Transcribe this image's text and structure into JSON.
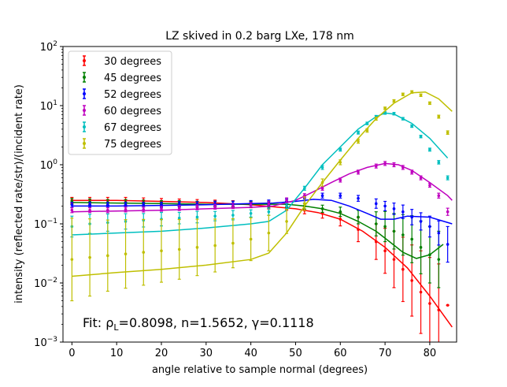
{
  "chart_data": {
    "type": "scatter",
    "title": "LZ skived in 0.2 barg LXe, 178 nm",
    "xlabel": "angle relative to sample normal (degrees)",
    "ylabel": "intensity (reflected rate/str)/(incident rate)",
    "xlim": [
      -2,
      86
    ],
    "ylim": [
      0.001,
      100
    ],
    "yscale": "log",
    "grid": false,
    "legend_position": "top-left",
    "annotation": "Fit: ρL=0.8098, n=1.5652, γ=0.1118",
    "annotation_parts": {
      "prefix": "Fit: ρ",
      "sub": "L",
      "rest": "=0.8098, n=1.5652, γ=0.1118"
    },
    "x_ticks": [
      0,
      10,
      20,
      30,
      40,
      50,
      60,
      70,
      80
    ],
    "x_tick_labels": [
      "0",
      "10",
      "20",
      "30",
      "40",
      "50",
      "60",
      "70",
      "80"
    ],
    "y_ticks": [
      0.001,
      0.01,
      0.1,
      1,
      10,
      100
    ],
    "y_tick_labels": [
      {
        "base": "10",
        "exp": "−3"
      },
      {
        "base": "10",
        "exp": "−2"
      },
      {
        "base": "10",
        "exp": "−1"
      },
      {
        "base": "10",
        "exp": "0"
      },
      {
        "base": "10",
        "exp": "1"
      },
      {
        "base": "10",
        "exp": "2"
      }
    ],
    "series": [
      {
        "name": "30 degrees",
        "color": "#ff0000",
        "points": [
          [
            0,
            0.25,
            1.12
          ],
          [
            4,
            0.25,
            1.12
          ],
          [
            8,
            0.25,
            1.12
          ],
          [
            12,
            0.25,
            1.12
          ],
          [
            16,
            0.245,
            1.12
          ],
          [
            20,
            0.24,
            1.12
          ],
          [
            24,
            0.235,
            1.12
          ],
          [
            28,
            0.23,
            1.12
          ],
          [
            32,
            0.225,
            1.12
          ],
          [
            36,
            0.22,
            1.12
          ],
          [
            40,
            0.21,
            1.12
          ],
          [
            44,
            0.2,
            1.12
          ],
          [
            48,
            0.19,
            1.12
          ],
          [
            52,
            0.17,
            1.15
          ],
          [
            56,
            0.15,
            1.2
          ],
          [
            60,
            0.12,
            1.3
          ],
          [
            64,
            0.08,
            1.6
          ],
          [
            68,
            0.05,
            2.0
          ],
          [
            70,
            0.035,
            2.4
          ],
          [
            72,
            0.025,
            3.0
          ],
          [
            74,
            0.017,
            3.5
          ],
          [
            76,
            0.011,
            4.0
          ],
          [
            78,
            0.007,
            5.0
          ],
          [
            80,
            0.0045,
            6.0
          ],
          [
            82,
            0.0035,
            6.0
          ],
          [
            84,
            0.0042,
            1.0
          ]
        ],
        "fit": [
          [
            0,
            0.25
          ],
          [
            10,
            0.25
          ],
          [
            20,
            0.24
          ],
          [
            30,
            0.23
          ],
          [
            40,
            0.21
          ],
          [
            50,
            0.18
          ],
          [
            55,
            0.155
          ],
          [
            60,
            0.12
          ],
          [
            65,
            0.075
          ],
          [
            70,
            0.04
          ],
          [
            75,
            0.018
          ],
          [
            80,
            0.006
          ],
          [
            85,
            0.0018
          ]
        ]
      },
      {
        "name": "45 degrees",
        "color": "#008000",
        "points": [
          [
            0,
            0.24,
            1.12
          ],
          [
            4,
            0.235,
            1.12
          ],
          [
            8,
            0.23,
            1.12
          ],
          [
            12,
            0.23,
            1.12
          ],
          [
            16,
            0.225,
            1.12
          ],
          [
            20,
            0.22,
            1.12
          ],
          [
            24,
            0.22,
            1.12
          ],
          [
            28,
            0.215,
            1.12
          ],
          [
            32,
            0.215,
            1.12
          ],
          [
            36,
            0.215,
            1.12
          ],
          [
            40,
            0.215,
            1.12
          ],
          [
            44,
            0.215,
            1.12
          ],
          [
            48,
            0.215,
            1.12
          ],
          [
            52,
            0.2,
            1.12
          ],
          [
            56,
            0.18,
            1.15
          ],
          [
            60,
            0.16,
            1.2
          ],
          [
            64,
            0.13,
            1.3
          ],
          [
            68,
            0.1,
            1.6
          ],
          [
            70,
            0.09,
            1.8
          ],
          [
            72,
            0.075,
            2.0
          ],
          [
            74,
            0.065,
            2.2
          ],
          [
            76,
            0.055,
            2.5
          ],
          [
            78,
            0.04,
            2.8
          ],
          [
            80,
            0.03,
            3.0
          ],
          [
            82,
            0.025,
            3.0
          ]
        ],
        "fit": [
          [
            0,
            0.23
          ],
          [
            10,
            0.225
          ],
          [
            20,
            0.22
          ],
          [
            30,
            0.215
          ],
          [
            40,
            0.215
          ],
          [
            48,
            0.215
          ],
          [
            52,
            0.2
          ],
          [
            56,
            0.18
          ],
          [
            60,
            0.15
          ],
          [
            64,
            0.11
          ],
          [
            68,
            0.075
          ],
          [
            71,
            0.05
          ],
          [
            74,
            0.033
          ],
          [
            77,
            0.026
          ],
          [
            80,
            0.03
          ],
          [
            83,
            0.045
          ]
        ]
      },
      {
        "name": "52 degrees",
        "color": "#0000ff",
        "points": [
          [
            0,
            0.21,
            1.1
          ],
          [
            4,
            0.21,
            1.1
          ],
          [
            8,
            0.21,
            1.1
          ],
          [
            12,
            0.21,
            1.1
          ],
          [
            16,
            0.21,
            1.1
          ],
          [
            20,
            0.21,
            1.1
          ],
          [
            24,
            0.215,
            1.1
          ],
          [
            28,
            0.215,
            1.1
          ],
          [
            32,
            0.22,
            1.1
          ],
          [
            36,
            0.22,
            1.1
          ],
          [
            40,
            0.225,
            1.1
          ],
          [
            44,
            0.23,
            1.1
          ],
          [
            48,
            0.24,
            1.1
          ],
          [
            52,
            0.27,
            1.1
          ],
          [
            56,
            0.3,
            1.1
          ],
          [
            60,
            0.3,
            1.1
          ],
          [
            64,
            0.27,
            1.12
          ],
          [
            68,
            0.22,
            1.2
          ],
          [
            70,
            0.2,
            1.2
          ],
          [
            72,
            0.18,
            1.25
          ],
          [
            74,
            0.16,
            1.3
          ],
          [
            76,
            0.13,
            1.35
          ],
          [
            78,
            0.11,
            1.4
          ],
          [
            80,
            0.09,
            1.5
          ],
          [
            82,
            0.07,
            1.6
          ],
          [
            84,
            0.045,
            2.0
          ]
        ],
        "fit": [
          [
            0,
            0.2
          ],
          [
            10,
            0.2
          ],
          [
            20,
            0.205
          ],
          [
            30,
            0.21
          ],
          [
            40,
            0.22
          ],
          [
            45,
            0.225
          ],
          [
            50,
            0.24
          ],
          [
            54,
            0.26
          ],
          [
            58,
            0.25
          ],
          [
            62,
            0.2
          ],
          [
            66,
            0.15
          ],
          [
            69,
            0.12
          ],
          [
            72,
            0.12
          ],
          [
            75,
            0.135
          ],
          [
            80,
            0.13
          ],
          [
            85,
            0.1
          ]
        ]
      },
      {
        "name": "60 degrees",
        "color": "#bf00bf",
        "points": [
          [
            0,
            0.17,
            1.1
          ],
          [
            4,
            0.17,
            1.1
          ],
          [
            8,
            0.17,
            1.1
          ],
          [
            12,
            0.175,
            1.1
          ],
          [
            16,
            0.175,
            1.1
          ],
          [
            20,
            0.18,
            1.1
          ],
          [
            24,
            0.185,
            1.1
          ],
          [
            28,
            0.19,
            1.1
          ],
          [
            32,
            0.195,
            1.1
          ],
          [
            36,
            0.2,
            1.1
          ],
          [
            40,
            0.21,
            1.1
          ],
          [
            44,
            0.22,
            1.1
          ],
          [
            48,
            0.25,
            1.1
          ],
          [
            52,
            0.3,
            1.08
          ],
          [
            56,
            0.4,
            1.08
          ],
          [
            60,
            0.55,
            1.08
          ],
          [
            64,
            0.75,
            1.08
          ],
          [
            68,
            0.95,
            1.08
          ],
          [
            70,
            1.05,
            1.08
          ],
          [
            72,
            1.0,
            1.08
          ],
          [
            74,
            0.9,
            1.08
          ],
          [
            76,
            0.75,
            1.08
          ],
          [
            78,
            0.6,
            1.08
          ],
          [
            80,
            0.45,
            1.08
          ],
          [
            82,
            0.3,
            1.1
          ],
          [
            84,
            0.16,
            1.15
          ]
        ],
        "fit": [
          [
            0,
            0.16
          ],
          [
            10,
            0.165
          ],
          [
            20,
            0.17
          ],
          [
            30,
            0.18
          ],
          [
            40,
            0.19
          ],
          [
            45,
            0.2
          ],
          [
            50,
            0.25
          ],
          [
            54,
            0.35
          ],
          [
            58,
            0.5
          ],
          [
            62,
            0.7
          ],
          [
            66,
            0.9
          ],
          [
            70,
            1.05
          ],
          [
            73,
            1.0
          ],
          [
            76,
            0.8
          ],
          [
            80,
            0.5
          ],
          [
            84,
            0.3
          ],
          [
            85,
            0.25
          ]
        ]
      },
      {
        "name": "67 degrees",
        "color": "#00bfbf",
        "points": [
          [
            0,
            0.09,
            1.5
          ],
          [
            4,
            0.1,
            1.45
          ],
          [
            8,
            0.105,
            1.4
          ],
          [
            12,
            0.11,
            1.35
          ],
          [
            16,
            0.115,
            1.3
          ],
          [
            20,
            0.12,
            1.3
          ],
          [
            24,
            0.125,
            1.25
          ],
          [
            28,
            0.13,
            1.25
          ],
          [
            32,
            0.135,
            1.2
          ],
          [
            36,
            0.14,
            1.2
          ],
          [
            40,
            0.15,
            1.15
          ],
          [
            44,
            0.16,
            1.15
          ],
          [
            48,
            0.2,
            1.1
          ],
          [
            52,
            0.4,
            1.08
          ],
          [
            56,
            0.9,
            1.08
          ],
          [
            60,
            1.8,
            1.06
          ],
          [
            64,
            3.5,
            1.06
          ],
          [
            66,
            5.0,
            1.05
          ],
          [
            68,
            6.5,
            1.05
          ],
          [
            70,
            7.5,
            1.05
          ],
          [
            72,
            7.3,
            1.05
          ],
          [
            74,
            6.0,
            1.05
          ],
          [
            76,
            4.5,
            1.05
          ],
          [
            78,
            3.0,
            1.05
          ],
          [
            80,
            1.8,
            1.06
          ],
          [
            82,
            1.1,
            1.07
          ],
          [
            84,
            0.6,
            1.08
          ]
        ],
        "fit": [
          [
            0,
            0.065
          ],
          [
            10,
            0.07
          ],
          [
            20,
            0.075
          ],
          [
            30,
            0.085
          ],
          [
            40,
            0.1
          ],
          [
            44,
            0.11
          ],
          [
            48,
            0.17
          ],
          [
            52,
            0.4
          ],
          [
            56,
            1.0
          ],
          [
            60,
            2.0
          ],
          [
            64,
            4.0
          ],
          [
            68,
            6.5
          ],
          [
            70,
            7.5
          ],
          [
            72,
            7.2
          ],
          [
            76,
            5.0
          ],
          [
            80,
            2.8
          ],
          [
            84,
            1.3
          ]
        ]
      },
      {
        "name": "75 degrees",
        "color": "#bfbf00",
        "points": [
          [
            0,
            0.025,
            5.0
          ],
          [
            4,
            0.027,
            4.5
          ],
          [
            8,
            0.029,
            4.0
          ],
          [
            12,
            0.031,
            3.8
          ],
          [
            16,
            0.033,
            3.6
          ],
          [
            20,
            0.035,
            3.4
          ],
          [
            24,
            0.037,
            3.2
          ],
          [
            28,
            0.04,
            3.0
          ],
          [
            32,
            0.043,
            2.8
          ],
          [
            36,
            0.047,
            2.6
          ],
          [
            40,
            0.055,
            2.3
          ],
          [
            44,
            0.07,
            2.0
          ],
          [
            48,
            0.11,
            1.6
          ],
          [
            52,
            0.22,
            1.3
          ],
          [
            56,
            0.5,
            1.15
          ],
          [
            60,
            1.1,
            1.1
          ],
          [
            64,
            2.5,
            1.08
          ],
          [
            66,
            3.8,
            1.07
          ],
          [
            68,
            6.0,
            1.06
          ],
          [
            70,
            9.0,
            1.05
          ],
          [
            72,
            12.0,
            1.05
          ],
          [
            74,
            15.5,
            1.05
          ],
          [
            76,
            17.0,
            1.05
          ],
          [
            78,
            15.0,
            1.05
          ],
          [
            80,
            11.0,
            1.05
          ],
          [
            82,
            6.5,
            1.06
          ],
          [
            84,
            3.5,
            1.07
          ]
        ],
        "fit": [
          [
            0,
            0.013
          ],
          [
            10,
            0.015
          ],
          [
            20,
            0.017
          ],
          [
            30,
            0.02
          ],
          [
            40,
            0.025
          ],
          [
            44,
            0.032
          ],
          [
            48,
            0.07
          ],
          [
            52,
            0.2
          ],
          [
            56,
            0.5
          ],
          [
            60,
            1.2
          ],
          [
            64,
            2.8
          ],
          [
            68,
            6.0
          ],
          [
            72,
            11.0
          ],
          [
            76,
            16.5
          ],
          [
            79,
            17.0
          ],
          [
            82,
            13.0
          ],
          [
            85,
            8.0
          ]
        ]
      }
    ]
  }
}
